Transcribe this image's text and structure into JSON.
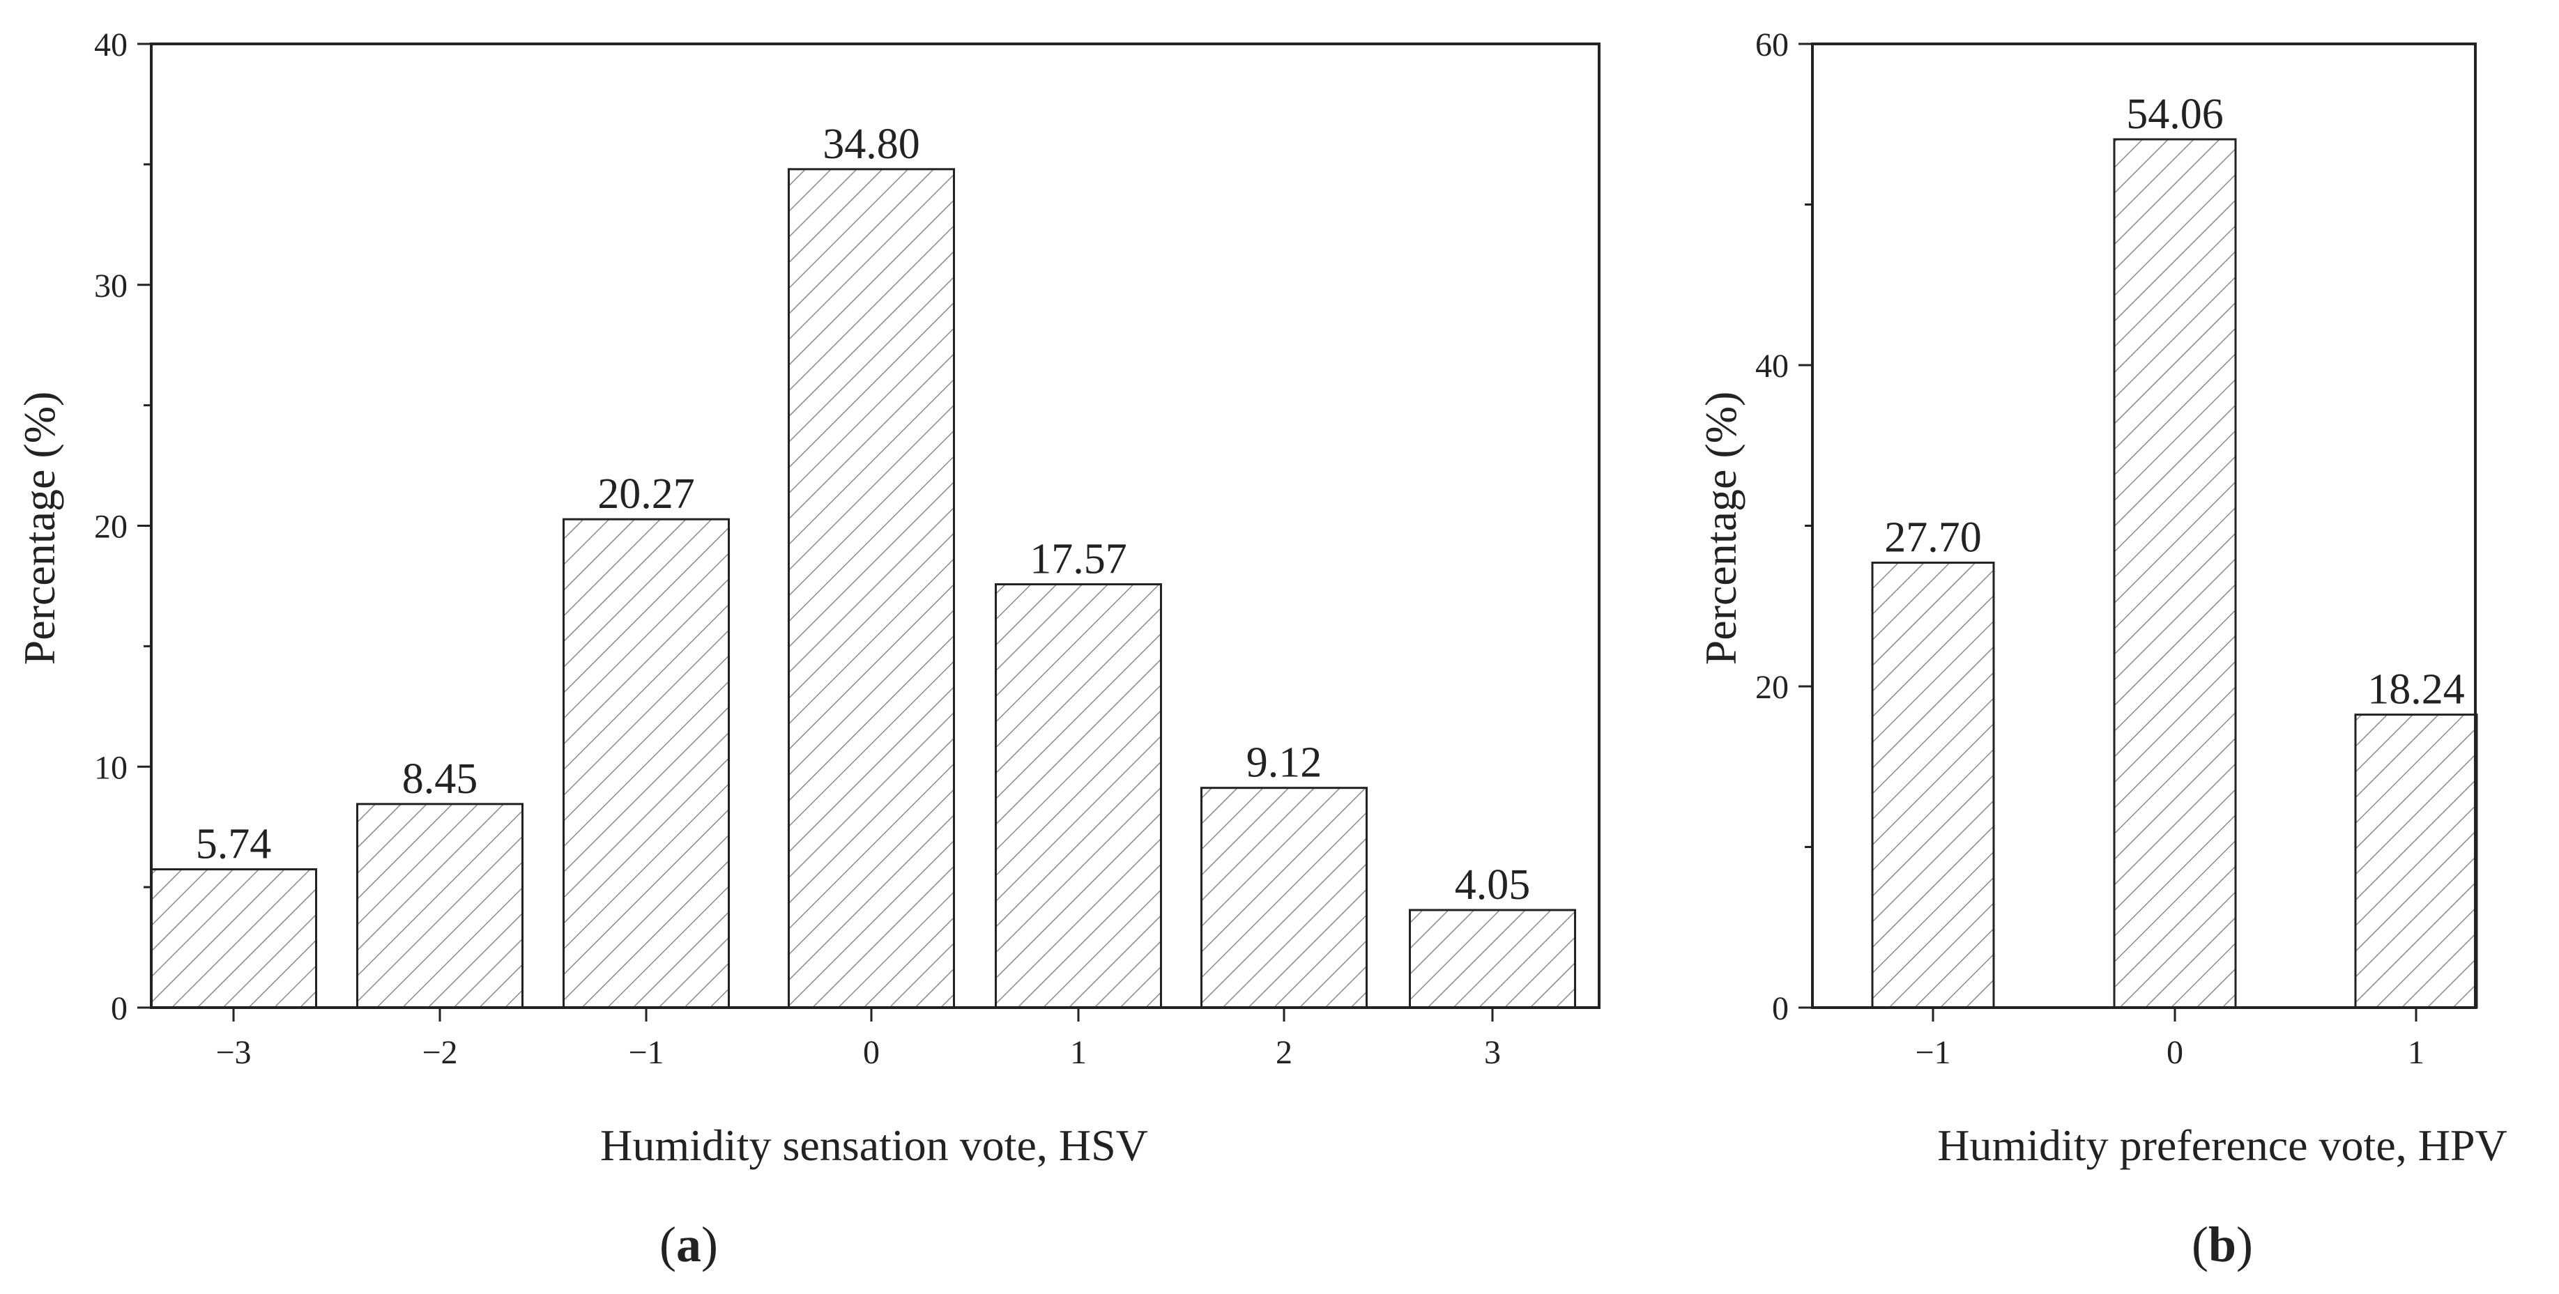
{
  "chart_data": [
    {
      "type": "bar",
      "panel": "a",
      "panel_label_open": "(",
      "panel_label_letter": "a",
      "panel_label_close": ")",
      "categories": [
        "−3",
        "−2",
        "−1",
        "0",
        "1",
        "2",
        "3"
      ],
      "values": [
        5.74,
        8.45,
        20.27,
        34.8,
        17.57,
        9.12,
        4.05
      ],
      "value_labels": [
        "5.74",
        "8.45",
        "20.27",
        "34.80",
        "17.57",
        "9.12",
        "4.05"
      ],
      "xlabel": "Humidity sensation vote, HSV",
      "ylabel": "Percentage (%)",
      "ylim": [
        0,
        40
      ],
      "yticks": [
        0,
        10,
        20,
        30,
        40
      ],
      "ytick_labels": [
        "0",
        "10",
        "20",
        "30",
        "40"
      ],
      "fill": "hatched",
      "grid": false
    },
    {
      "type": "bar",
      "panel": "b",
      "panel_label_open": "(",
      "panel_label_letter": "b",
      "panel_label_close": ")",
      "categories": [
        "−1",
        "0",
        "1"
      ],
      "values": [
        27.7,
        54.06,
        18.24
      ],
      "value_labels": [
        "27.70",
        "54.06",
        "18.24"
      ],
      "xlabel": "Humidity preference vote, HPV",
      "ylabel": "Percentage (%)",
      "ylim": [
        0,
        60
      ],
      "yticks": [
        0,
        20,
        40,
        60
      ],
      "ytick_labels": [
        "0",
        "20",
        "40",
        "60"
      ],
      "fill": "hatched",
      "grid": false
    }
  ],
  "colors": {
    "axis": "#222222",
    "bar_fill": "#ffffff",
    "hatch": "#8a8a8a",
    "bar_stroke": "#222222"
  }
}
